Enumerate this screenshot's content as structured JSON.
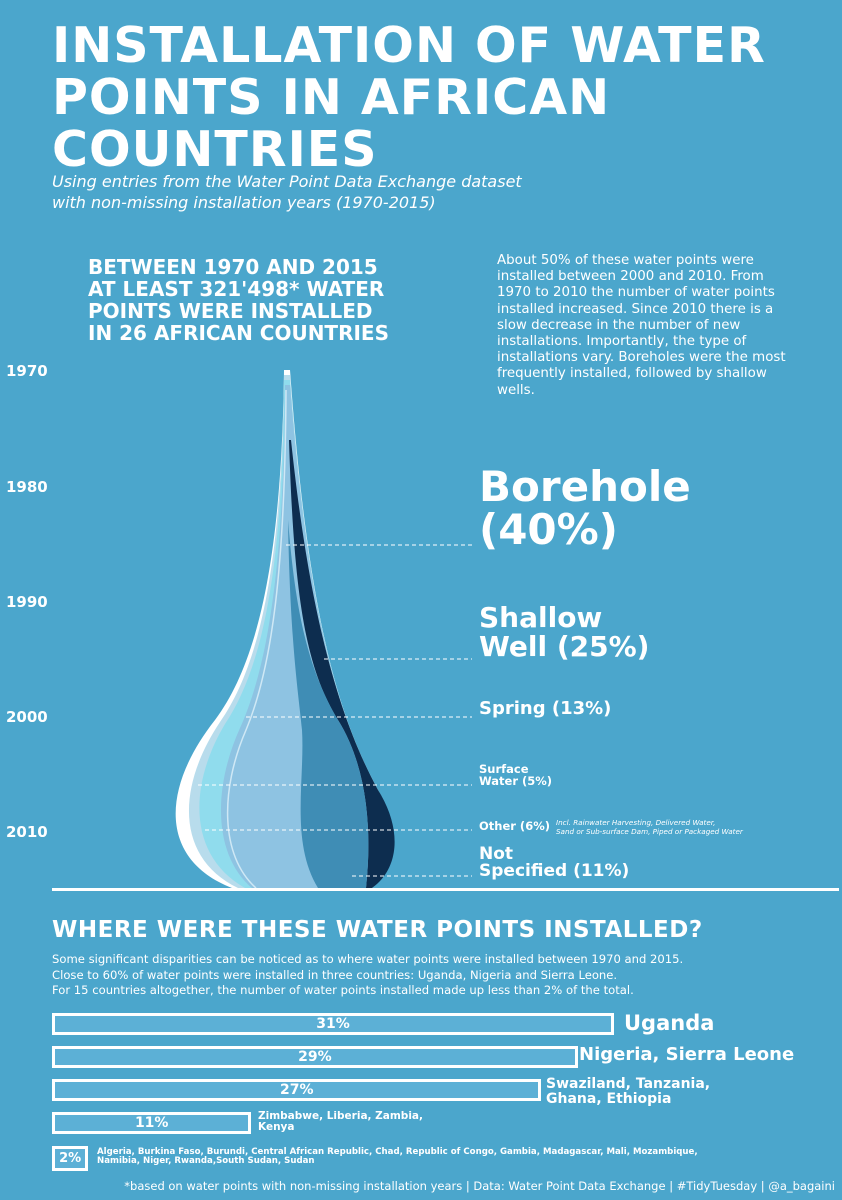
{
  "title_lines": [
    "INSTALLATION OF WATER",
    "POINTS IN AFRICAN",
    "COUNTRIES"
  ],
  "subtitle_lines": [
    "Using entries from the Water Point Data Exchange dataset",
    "with non-missing installation years (1970-2015)"
  ],
  "headline_lines": [
    "BETWEEN 1970 AND 2015",
    "AT LEAST 321'498* WATER",
    "POINTS WERE INSTALLED",
    "IN 26 AFRICAN COUNTRIES"
  ],
  "description": "About 50% of these water points were installed between 2000 and 2010. From 1970 to 2010 the number of water points installed increased. Since 2010 there is a slow decrease in the number of new installations. Importantly, the type of installations vary. Boreholes were the most frequently installed, followed by shallow wells.",
  "colors": {
    "background": "#4ba6cc",
    "borehole": "#8ec3e2",
    "shallow_well": "#3f8db5",
    "spring": "#0d2d4f",
    "surface_water": "#90dced",
    "other": "#b8dcec",
    "not_specified": "#ffffff"
  },
  "chart_data": [
    {
      "type": "area",
      "y_axis": [
        "1970",
        "1980",
        "1990",
        "2000",
        "2010"
      ],
      "categories": [
        {
          "key": "borehole",
          "label_lines": [
            "Borehole",
            "(40%)"
          ],
          "share": 40
        },
        {
          "key": "shallow_well",
          "label_lines": [
            "Shallow",
            "Well (25%)"
          ],
          "share": 25
        },
        {
          "key": "spring",
          "label_lines": [
            "Spring (13%)"
          ],
          "share": 13
        },
        {
          "key": "surface_water",
          "label_lines": [
            "Surface",
            "Water (5%)"
          ],
          "share": 5
        },
        {
          "key": "other",
          "label_lines": [
            "Other (6%)"
          ],
          "share": 6,
          "note_lines": [
            "Incl. Rainwater Harvesting, Delivered Water,",
            "Sand or Sub-surface Dam, Piped or Packaged Water"
          ]
        },
        {
          "key": "not_specified",
          "label_lines": [
            "Not",
            "Specified (11%)"
          ],
          "share": 11
        }
      ]
    },
    {
      "type": "bar",
      "title": "WHERE WERE THESE WATER POINTS INSTALLED?",
      "bars": [
        {
          "value": 31,
          "label": "31%",
          "country_lines": [
            "Uganda"
          ]
        },
        {
          "value": 29,
          "label": "29%",
          "country_lines": [
            "Nigeria, Sierra Leone"
          ]
        },
        {
          "value": 27,
          "label": "27%",
          "country_lines": [
            "Swaziland, Tanzania,",
            "Ghana, Ethiopia"
          ]
        },
        {
          "value": 11,
          "label": "11%",
          "country_lines": [
            "Zimbabwe, Liberia, Zambia,",
            "Kenya"
          ]
        },
        {
          "value": 2,
          "label": "2%",
          "country_lines": [
            "Algeria, Burkina Faso, Burundi, Central African Republic, Chad, Republic of Congo, Gambia, Madagascar, Mali, Mozambique,",
            "Namibia, Niger, Rwanda,South Sudan, Sudan"
          ]
        }
      ]
    }
  ],
  "section2": {
    "paragraph_lines": [
      "Some significant disparities can be noticed as to where water points were installed between 1970 and 2015.",
      "Close to 60% of water points were installed in three countries: Uganda, Nigeria and Sierra Leone.",
      "For 15 countries altogether, the number of water points installed made up less than 2% of the total."
    ]
  },
  "footer": "*based on water points with non-missing installation years | Data: Water Point Data Exchange | #TidyTuesday | @a_bagaini"
}
